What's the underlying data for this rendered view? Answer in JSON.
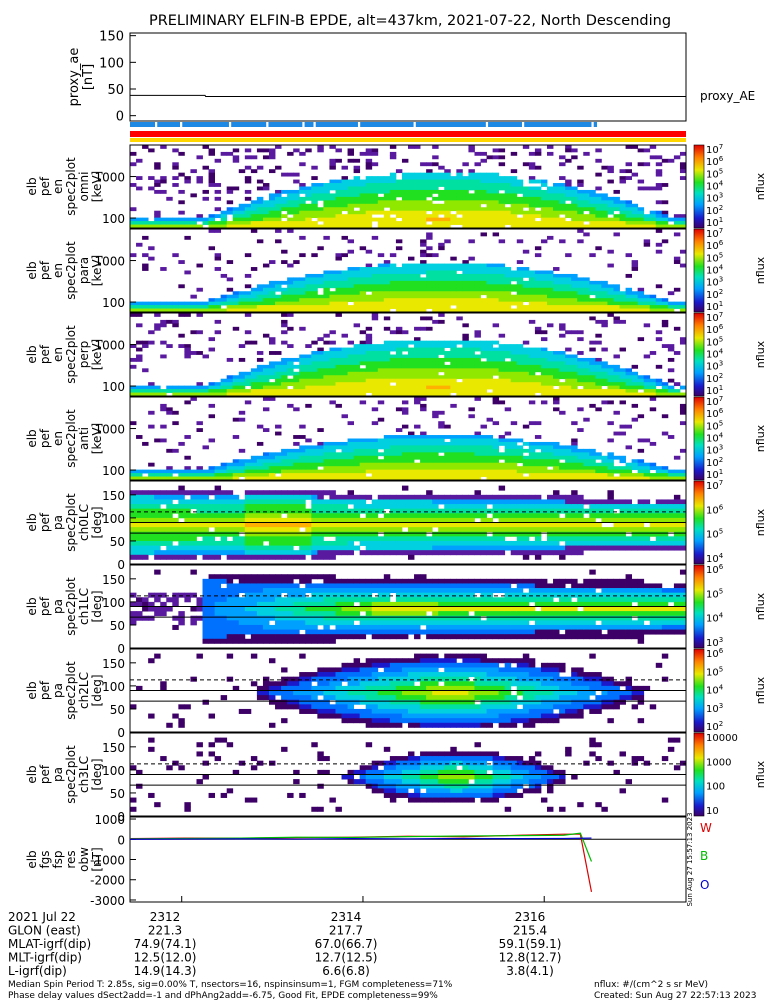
{
  "title": "PRELIMINARY ELFIN-B EPDE, alt=437km, 2021-07-22, North Descending",
  "chart_data": [
    {
      "type": "line",
      "id": "proxy_ae",
      "ylabel": [
        "proxy_ae",
        "[nT]"
      ],
      "legend": "proxy_AE",
      "ylim": [
        -10,
        155
      ],
      "yticks": [
        "150",
        "100",
        "50",
        "0"
      ],
      "x": [
        0.0,
        0.135,
        0.136,
        1.0
      ],
      "values": [
        38,
        38,
        36,
        36
      ]
    },
    {
      "type": "heatmap",
      "id": "spec_omni",
      "ylabel": [
        "elb",
        "pef",
        "en",
        "spec2plot",
        "omni",
        "[keV]"
      ],
      "yscale": "log",
      "ylim": [
        70,
        8000
      ],
      "yticks": [
        "1000",
        "100"
      ],
      "zlabel": "nflux",
      "zticks": [
        "10^7",
        "10^6",
        "10^5",
        "10^4",
        "10^3",
        "10^2",
        "10^1"
      ]
    },
    {
      "type": "heatmap",
      "id": "spec_para",
      "ylabel": [
        "elb",
        "pef",
        "en",
        "spec2plot",
        "para",
        "[keV]"
      ],
      "yscale": "log",
      "yticks": [
        "1000",
        "100"
      ],
      "zlabel": "nflux",
      "zticks": [
        "10^7",
        "10^6",
        "10^5",
        "10^4",
        "10^3",
        "10^2",
        "10^1"
      ]
    },
    {
      "type": "heatmap",
      "id": "spec_perp",
      "ylabel": [
        "elb",
        "pef",
        "en",
        "spec2plot",
        "perp",
        "[keV]"
      ],
      "yscale": "log",
      "yticks": [
        "1000",
        "100"
      ],
      "zlabel": "nflux",
      "zticks": [
        "10^7",
        "10^6",
        "10^5",
        "10^4",
        "10^3",
        "10^2",
        "10^1"
      ]
    },
    {
      "type": "heatmap",
      "id": "spec_anti",
      "ylabel": [
        "elb",
        "pef",
        "en",
        "spec2plot",
        "anti",
        "[keV]"
      ],
      "yscale": "log",
      "yticks": [
        "1000",
        "100"
      ],
      "zlabel": "nflux",
      "zticks": [
        "10^7",
        "10^6",
        "10^5",
        "10^4",
        "10^3",
        "10^2",
        "10^1"
      ]
    },
    {
      "type": "heatmap",
      "id": "pa_ch0",
      "ylabel": [
        "elb",
        "pef",
        "pa",
        "spec2plot",
        "ch0LC",
        "[deg]"
      ],
      "ylim": [
        0,
        180
      ],
      "yticks": [
        "150",
        "100",
        "50",
        "0"
      ],
      "zlabel": "nflux",
      "zticks": [
        "10^7",
        "10^6",
        "10^5",
        "10^4"
      ]
    },
    {
      "type": "heatmap",
      "id": "pa_ch1",
      "ylabel": [
        "elb",
        "pef",
        "pa",
        "spec2plot",
        "ch1LC",
        "[deg]"
      ],
      "ylim": [
        0,
        180
      ],
      "yticks": [
        "150",
        "100",
        "50",
        "0"
      ],
      "zlabel": "nflux",
      "zticks": [
        "10^6",
        "10^5",
        "10^4",
        "10^3"
      ]
    },
    {
      "type": "heatmap",
      "id": "pa_ch2",
      "ylabel": [
        "elb",
        "pef",
        "pa",
        "spec2plot",
        "ch2LC",
        "[deg]"
      ],
      "ylim": [
        0,
        180
      ],
      "yticks": [
        "150",
        "100",
        "50",
        "0"
      ],
      "zlabel": "nflux",
      "zticks": [
        "10^6",
        "10^5",
        "10^4",
        "10^3",
        "10^2"
      ]
    },
    {
      "type": "heatmap",
      "id": "pa_ch3",
      "ylabel": [
        "elb",
        "pef",
        "pa",
        "spec2plot",
        "ch3LC",
        "[deg]"
      ],
      "ylim": [
        0,
        180
      ],
      "yticks": [
        "150",
        "100",
        "50",
        "0"
      ],
      "zlabel": "nflux",
      "zticks": [
        "10000",
        "1000",
        "100",
        "10"
      ]
    },
    {
      "type": "line",
      "id": "fgm",
      "ylabel": [
        "elb",
        "fgs",
        "fsp",
        "res",
        "obw",
        "[nT]"
      ],
      "ylim": [
        -3100,
        1100
      ],
      "yticks": [
        "1000",
        "0",
        "-1000",
        "-2000",
        "-3000"
      ],
      "x": [
        0.0,
        0.1,
        0.2,
        0.3,
        0.4,
        0.5,
        0.6,
        0.7,
        0.78,
        0.81,
        0.83
      ],
      "series": [
        {
          "name": "W",
          "color": "#dd0000",
          "values": [
            30,
            60,
            50,
            80,
            100,
            150,
            120,
            200,
            250,
            250,
            -2600
          ]
        },
        {
          "name": "B",
          "color": "#00bb00",
          "values": [
            20,
            40,
            60,
            100,
            90,
            130,
            160,
            180,
            200,
            300,
            -1100
          ]
        },
        {
          "name": "O",
          "color": "#0000cc",
          "values": [
            0,
            10,
            20,
            10,
            30,
            20,
            40,
            30,
            40,
            50,
            60
          ]
        }
      ],
      "side_text": "Sun Aug 27 15:57:13 2023"
    }
  ],
  "time_axis": {
    "ticks": [
      "2312",
      "2314",
      "2316"
    ],
    "rows": [
      {
        "label": "2021 Jul 22",
        "values": [
          "2312",
          "2314",
          "2316"
        ]
      },
      {
        "label": "GLON (east)",
        "values": [
          "221.3",
          "217.7",
          "215.4"
        ]
      },
      {
        "label": "MLAT-igrf(dip)",
        "values": [
          "74.9(74.1)",
          "67.0(66.7)",
          "59.1(59.1)"
        ]
      },
      {
        "label": "MLT-igrf(dip)",
        "values": [
          "12.5(12.0)",
          "12.7(12.5)",
          "12.8(12.7)"
        ]
      },
      {
        "label": "L-igrf(dip)",
        "values": [
          "14.9(14.3)",
          "6.6(6.8)",
          "3.8(4.1)"
        ]
      }
    ]
  },
  "footer": {
    "line1": "Median Spin Period T: 2.85s, sig=0.00% T, nsectors=16, nspinsinsum=1, FGM completeness=71%",
    "line2": "Phase delay values dSect2add=-1 and dPhAng2add=-6.75, Good Fit, EPDE completeness=99%",
    "right1": "nflux: #/(cm^2 s sr MeV)",
    "right2": "Created: Sun Aug 27 22:57:13 2023"
  },
  "colors": {
    "bar_blue": "#1e88e5",
    "bar_red": "#ff0000",
    "bar_yellow": "#ffd600"
  }
}
